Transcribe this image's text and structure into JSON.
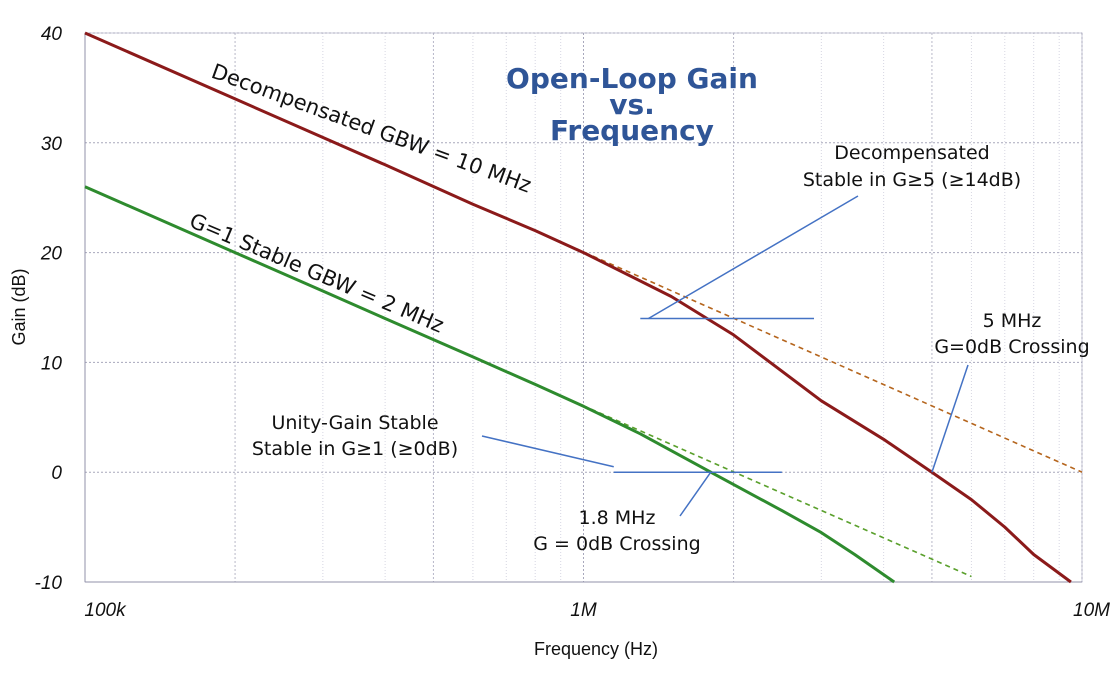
{
  "chart_data": {
    "type": "line",
    "title": [
      "Open-Loop Gain",
      "vs.",
      "Frequency"
    ],
    "xlabel": "Frequency (Hz)",
    "ylabel": "Gain (dB)",
    "xscale": "log",
    "xlim": [
      100000,
      10000000
    ],
    "ylim": [
      -10,
      40
    ],
    "x_ticks": [
      {
        "value": 100000,
        "label": "100k"
      },
      {
        "value": 1000000,
        "label": "1M"
      },
      {
        "value": 10000000,
        "label": "10M"
      }
    ],
    "y_ticks": [
      {
        "value": 40,
        "label": "40"
      },
      {
        "value": 30,
        "label": "30"
      },
      {
        "value": 20,
        "label": "20"
      },
      {
        "value": 10,
        "label": "10"
      },
      {
        "value": 0,
        "label": "0"
      },
      {
        "value": -10,
        "label": "-10"
      }
    ],
    "grid": true,
    "series": [
      {
        "name": "Decompensated GBW = 10 MHz",
        "color": "#8b1a1a",
        "style": "solid",
        "points": [
          [
            100000,
            40
          ],
          [
            200000,
            34
          ],
          [
            400000,
            28
          ],
          [
            600000,
            24.4
          ],
          [
            800000,
            22
          ],
          [
            1000000,
            20
          ],
          [
            1500000,
            16
          ],
          [
            2000000,
            12.5
          ],
          [
            3000000,
            6.5
          ],
          [
            4000000,
            3
          ],
          [
            5000000,
            0
          ],
          [
            6000000,
            -2.5
          ],
          [
            7000000,
            -5
          ],
          [
            8000000,
            -7.5
          ],
          [
            9500000,
            -10
          ]
        ]
      },
      {
        "name": "Decompensated GBW extrapolation",
        "color": "#b5651d",
        "style": "dashed",
        "points": [
          [
            800000,
            22
          ],
          [
            10000000,
            0
          ]
        ]
      },
      {
        "name": "G=1 Stable  GBW = 2 MHz",
        "color": "#2e8b2e",
        "style": "solid",
        "points": [
          [
            100000,
            26
          ],
          [
            200000,
            20
          ],
          [
            300000,
            16.5
          ],
          [
            400000,
            14
          ],
          [
            600000,
            10.5
          ],
          [
            800000,
            8
          ],
          [
            1000000,
            6
          ],
          [
            1300000,
            3.5
          ],
          [
            1800000,
            0
          ],
          [
            2500000,
            -3.5
          ],
          [
            3000000,
            -5.5
          ],
          [
            3500000,
            -7.5
          ],
          [
            4200000,
            -10
          ]
        ]
      },
      {
        "name": "G=1 Stable GBW extrapolation",
        "color": "#5aa02c",
        "style": "dashed",
        "points": [
          [
            400000,
            14
          ],
          [
            6000000,
            -9.5
          ]
        ]
      }
    ],
    "curve_labels": [
      {
        "series": 0,
        "text": "Decompensated GBW = 10 MHz"
      },
      {
        "series": 2,
        "text": "G=1 Stable  GBW = 2 MHz"
      }
    ],
    "reference_lines": [
      {
        "y": 14,
        "x_from": 1300000,
        "x_to": 2900000,
        "color": "#4472c4"
      },
      {
        "y": 0,
        "x_from": 1150000,
        "x_to": 2500000,
        "color": "#4472c4"
      }
    ],
    "annotations": [
      {
        "lines": [
          "Decompensated",
          "Stable in G≥5  (≥14dB)"
        ],
        "pointer_to": [
          1350000,
          14
        ]
      },
      {
        "lines": [
          "5 MHz",
          "G=0dB Crossing"
        ],
        "pointer_to": [
          5000000,
          0
        ]
      },
      {
        "lines": [
          "Unity-Gain Stable",
          "Stable in G≥1  (≥0dB)"
        ],
        "pointer_to": [
          1150000,
          0.5
        ]
      },
      {
        "lines": [
          "1.8 MHz",
          "G = 0dB Crossing"
        ],
        "pointer_to": [
          1800000,
          0
        ]
      }
    ]
  }
}
